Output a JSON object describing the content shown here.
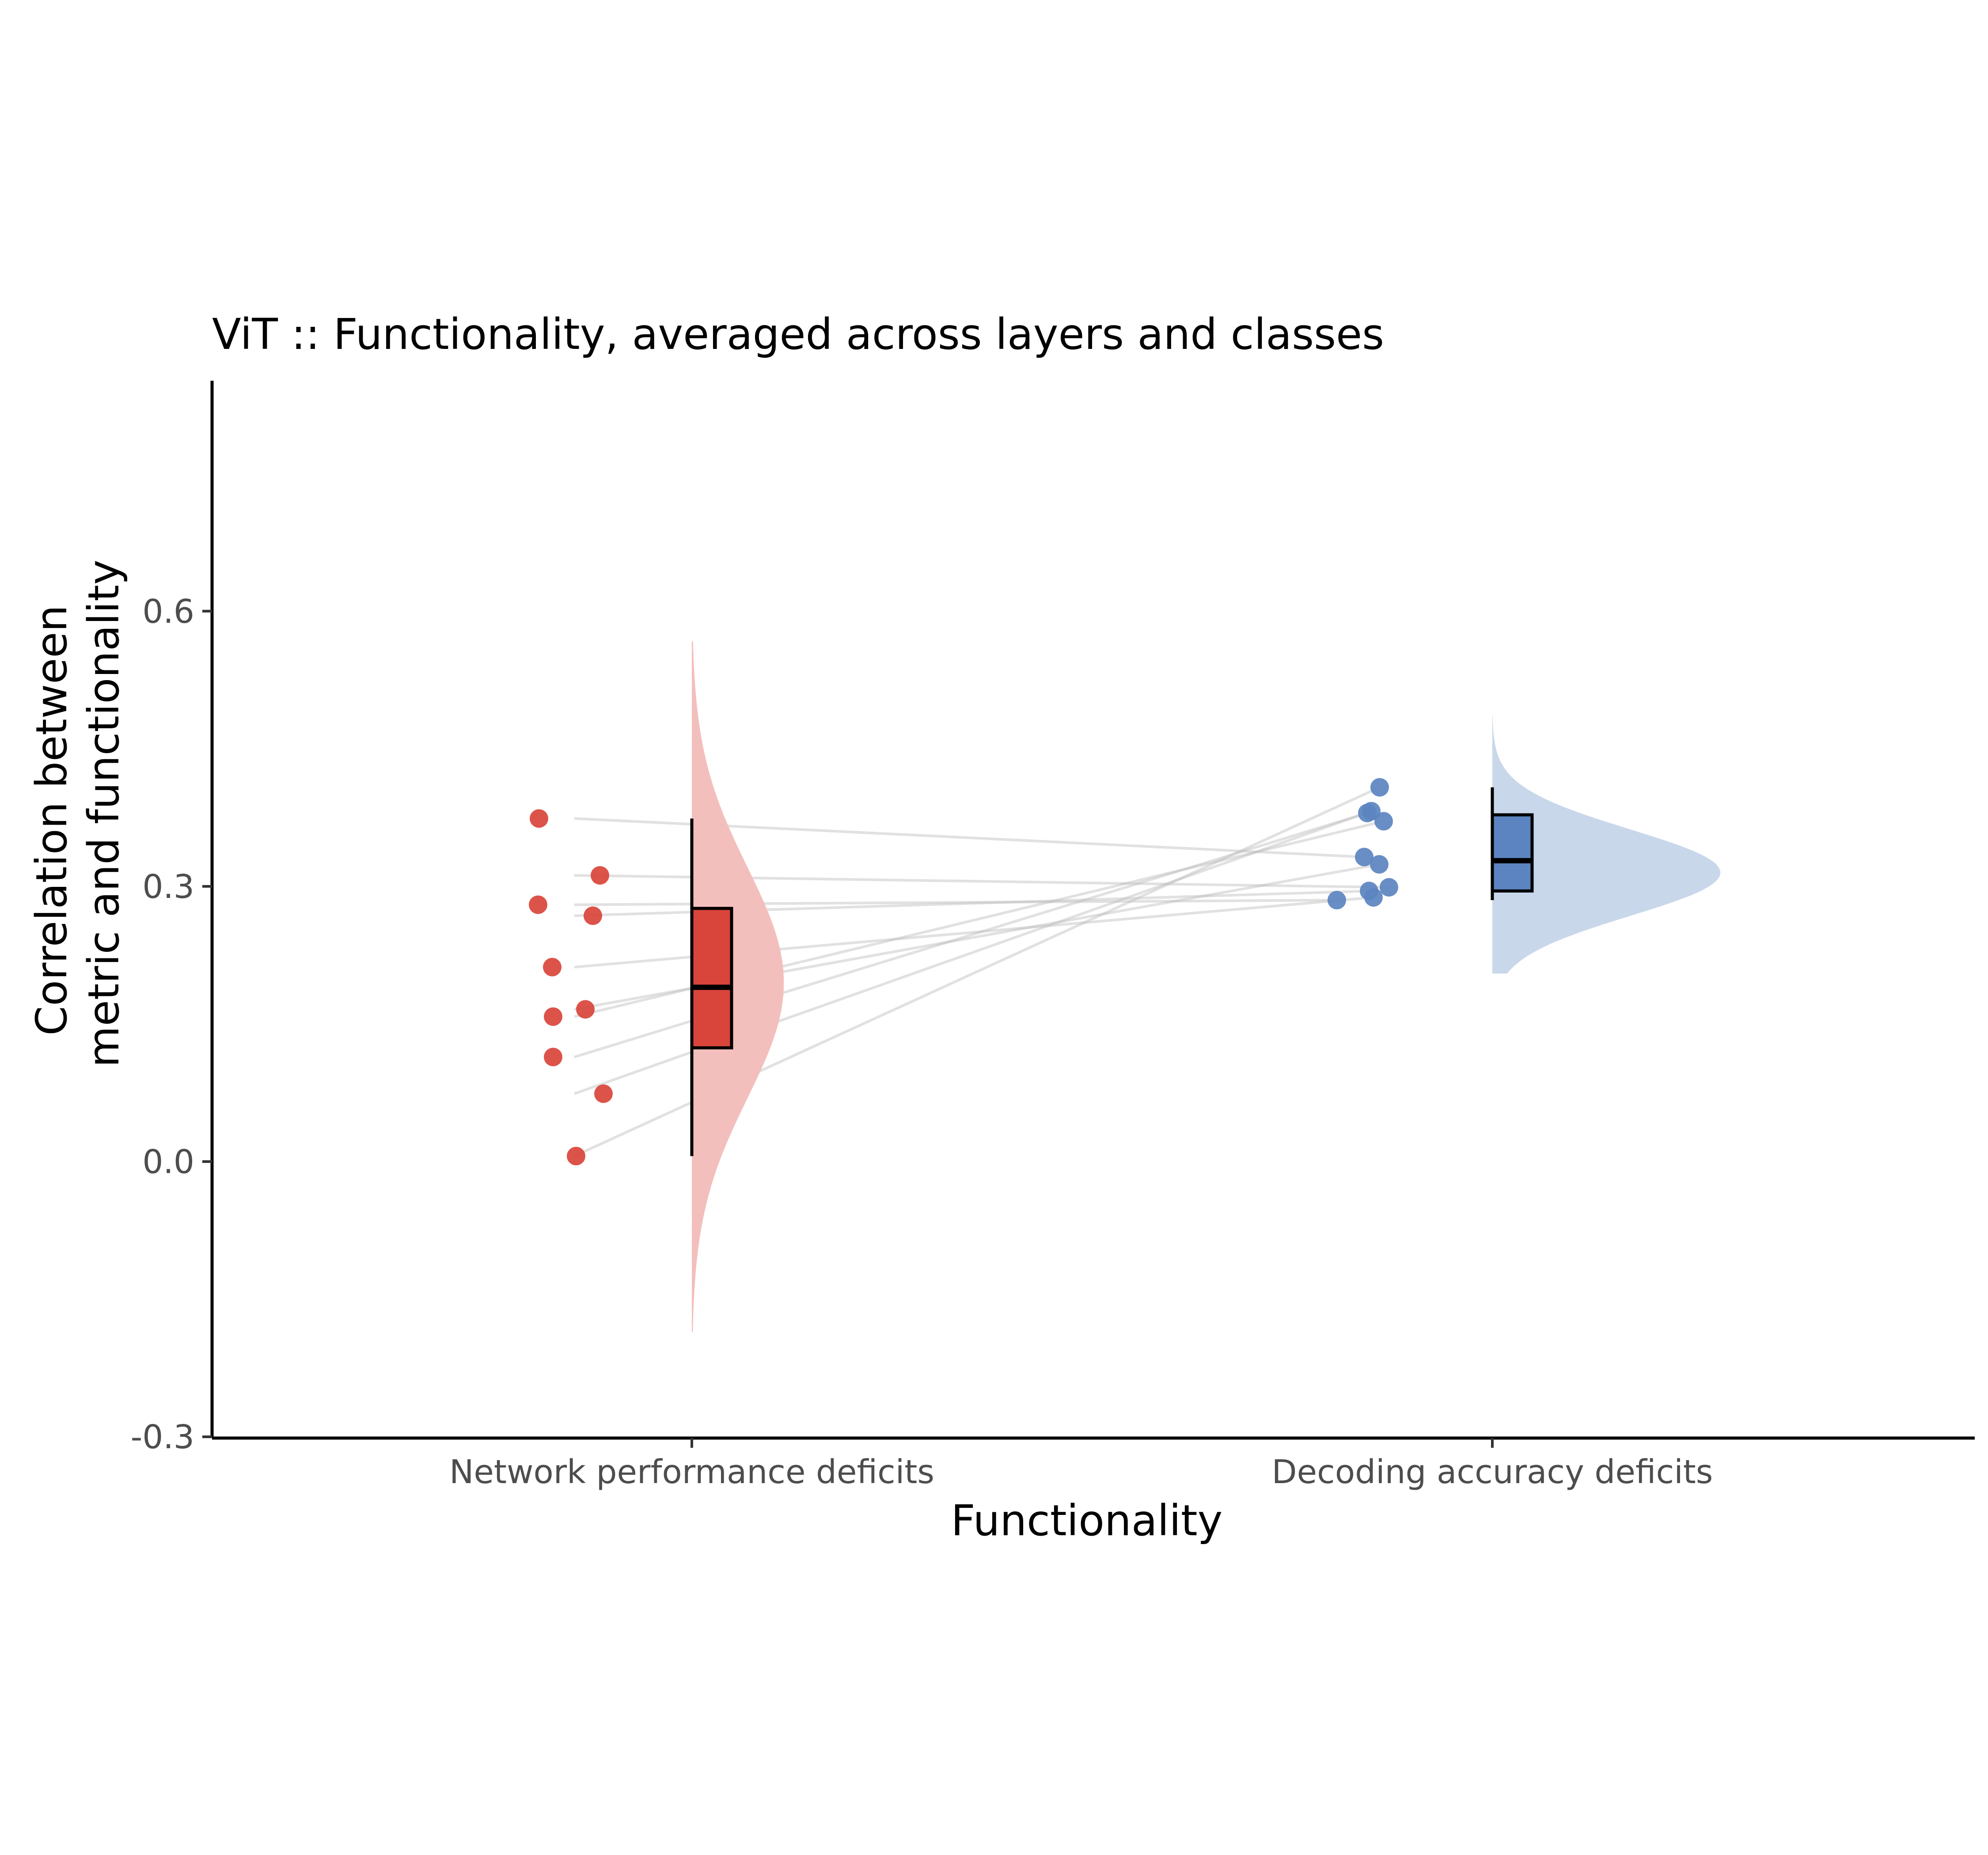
{
  "chart_data": {
    "type": "raincloud",
    "title": "ViT :: Functionality, averaged across layers and classes",
    "xlabel": "Functionality",
    "ylabel": [
      "Correlation between",
      "metric and functionality"
    ],
    "ylim": [
      -0.3,
      0.85
    ],
    "yticks": [
      {
        "value": -0.3,
        "label": "-0.3"
      },
      {
        "value": 0.0,
        "label": "0.0"
      },
      {
        "value": 0.3,
        "label": "0.3"
      },
      {
        "value": 0.6,
        "label": "0.6"
      }
    ],
    "categories": [
      "Network performance deficits",
      "Decoding accuracy deficits"
    ],
    "grid": false,
    "legend": "none",
    "series": [
      {
        "category": "Network performance deficits",
        "color": "#d9443b",
        "density_color": "#f3bfbc",
        "points": [
          0.374,
          0.312,
          0.28,
          0.268,
          0.212,
          0.166,
          0.158,
          0.114,
          0.074,
          0.006
        ],
        "box": {
          "whisker_low": 0.006,
          "q1": 0.124,
          "median": 0.19,
          "q3": 0.276,
          "whisker_high": 0.374
        },
        "density": {
          "ymin": -0.186,
          "ymax": 0.567,
          "peak": 0.195,
          "width": 0.23
        }
      },
      {
        "category": "Decoding accuracy deficits",
        "color": "#5b84c0",
        "density_color": "#c9d7ea",
        "points": [
          0.408,
          0.382,
          0.38,
          0.371,
          0.332,
          0.324,
          0.299,
          0.295,
          0.288,
          0.285
        ],
        "box": {
          "whisker_low": 0.285,
          "q1": 0.295,
          "median": 0.328,
          "q3": 0.378,
          "whisker_high": 0.408
        },
        "density": {
          "ymin": 0.205,
          "ymax": 0.487,
          "peak": 0.315,
          "width": 0.57
        }
      }
    ],
    "pairs": [
      [
        0.374,
        0.332
      ],
      [
        0.312,
        0.299
      ],
      [
        0.28,
        0.285
      ],
      [
        0.268,
        0.295
      ],
      [
        0.212,
        0.288
      ],
      [
        0.166,
        0.324
      ],
      [
        0.158,
        0.371
      ],
      [
        0.114,
        0.38
      ],
      [
        0.074,
        0.382
      ],
      [
        0.006,
        0.408
      ]
    ]
  }
}
